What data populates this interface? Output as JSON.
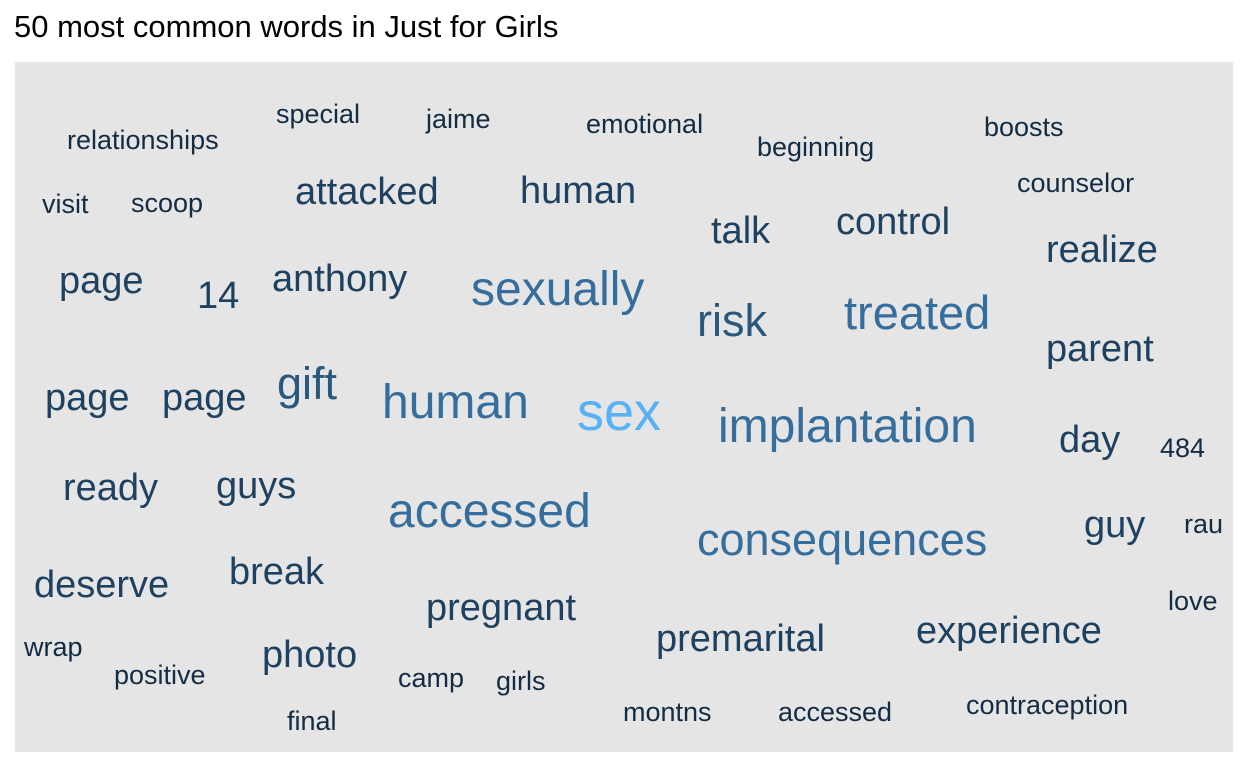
{
  "title": "50 most common words in Just for Girls",
  "colors": {
    "background": "#e5e5e5",
    "low": "#132b43",
    "high": "#56b1f7"
  },
  "chart_data": {
    "type": "wordcloud",
    "title": "50 most common words in Just for Girls",
    "words": [
      {
        "word": "sex",
        "n": 10
      },
      {
        "word": "implantation",
        "n": 7
      },
      {
        "word": "consequences",
        "n": 7
      },
      {
        "word": "human",
        "n": 7
      },
      {
        "word": "accessed",
        "n": 7
      },
      {
        "word": "sexually",
        "n": 7
      },
      {
        "word": "treated",
        "n": 7
      },
      {
        "word": "gift",
        "n": 6
      },
      {
        "word": "risk",
        "n": 6
      },
      {
        "word": "human",
        "n": 5
      },
      {
        "word": "attacked",
        "n": 5
      },
      {
        "word": "control",
        "n": 5
      },
      {
        "word": "realize",
        "n": 5
      },
      {
        "word": "parent",
        "n": 5
      },
      {
        "word": "page",
        "n": 5
      },
      {
        "word": "anthony",
        "n": 5
      },
      {
        "word": "page",
        "n": 5
      },
      {
        "word": "page",
        "n": 5
      },
      {
        "word": "day",
        "n": 5
      },
      {
        "word": "talk",
        "n": 5
      },
      {
        "word": "ready",
        "n": 5
      },
      {
        "word": "guys",
        "n": 5
      },
      {
        "word": "guy",
        "n": 5
      },
      {
        "word": "deserve",
        "n": 5
      },
      {
        "word": "break",
        "n": 5
      },
      {
        "word": "pregnant",
        "n": 5
      },
      {
        "word": "premarital",
        "n": 5
      },
      {
        "word": "experience",
        "n": 5
      },
      {
        "word": "photo",
        "n": 5
      },
      {
        "word": "14",
        "n": 5
      },
      {
        "word": "relationships",
        "n": 4
      },
      {
        "word": "special",
        "n": 4
      },
      {
        "word": "jaime",
        "n": 4
      },
      {
        "word": "emotional",
        "n": 4
      },
      {
        "word": "beginning",
        "n": 4
      },
      {
        "word": "boosts",
        "n": 4
      },
      {
        "word": "counselor",
        "n": 4
      },
      {
        "word": "visit",
        "n": 4
      },
      {
        "word": "scoop",
        "n": 4
      },
      {
        "word": "484",
        "n": 4
      },
      {
        "word": "rau",
        "n": 4
      },
      {
        "word": "love",
        "n": 4
      },
      {
        "word": "wrap",
        "n": 4
      },
      {
        "word": "positive",
        "n": 4
      },
      {
        "word": "camp",
        "n": 4
      },
      {
        "word": "girls",
        "n": 4
      },
      {
        "word": "final",
        "n": 4
      },
      {
        "word": "montns",
        "n": 4
      },
      {
        "word": "accessed",
        "n": 4
      },
      {
        "word": "contraception",
        "n": 4
      }
    ]
  }
}
